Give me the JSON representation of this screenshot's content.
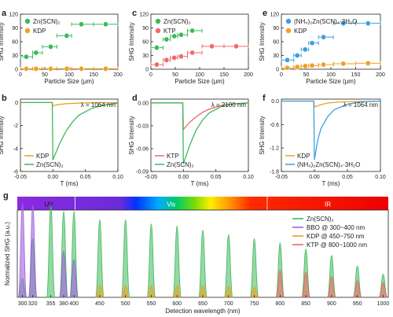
{
  "colors": {
    "zn": "#3cb95a",
    "kdp": "#f0a020",
    "ktp": "#ee6a6a",
    "nh4": "#3aa0e0",
    "bbo": "#a060e0",
    "axis": "#222222"
  },
  "chart_data": [
    {
      "id": "a",
      "type": "scatter",
      "label": "a",
      "xlabel": "Particle Size (μm)",
      "ylabel": "SHG Intensity",
      "xlim": [
        0,
        200
      ],
      "ylim": [
        0,
        120
      ],
      "xticks": [
        "0",
        "50",
        "100",
        "150",
        "200"
      ],
      "yticks": [
        "0",
        "30",
        "60",
        "90",
        "120"
      ],
      "series": [
        {
          "name": "Zn(SCN)₂",
          "color_key": "zn",
          "x": [
            12,
            32,
            62,
            95,
            125,
            175
          ],
          "y": [
            27,
            36,
            49,
            73,
            98,
            98
          ],
          "xerr": [
            [
              0,
              25
            ],
            [
              25,
              45
            ],
            [
              45,
              75
            ],
            [
              75,
              105
            ],
            [
              105,
              150
            ],
            [
              150,
              200
            ]
          ]
        },
        {
          "name": "KDP",
          "color_key": "kdp",
          "x": [
            12,
            32,
            62,
            95,
            125,
            175
          ],
          "y": [
            1,
            1,
            1,
            1,
            1,
            1
          ],
          "xerr": [
            [
              0,
              25
            ],
            [
              25,
              45
            ],
            [
              45,
              75
            ],
            [
              75,
              105
            ],
            [
              105,
              150
            ],
            [
              150,
              200
            ]
          ]
        }
      ]
    },
    {
      "id": "c",
      "type": "scatter",
      "label": "c",
      "xlabel": "Particle Size (μm)",
      "ylabel": "SHG Intensity",
      "xlim": [
        0,
        200
      ],
      "ylim": [
        0,
        120
      ],
      "xticks": [
        "0",
        "50",
        "100",
        "150",
        "200"
      ],
      "yticks": [
        "0",
        "30",
        "60",
        "90",
        "120"
      ],
      "series": [
        {
          "name": "Zn(SCN)₂",
          "color_key": "zn",
          "x": [
            12,
            32,
            48,
            62,
            85
          ],
          "y": [
            47,
            65,
            72,
            75,
            84
          ],
          "xerr": [
            [
              0,
              25
            ],
            [
              25,
              40
            ],
            [
              40,
              55
            ],
            [
              55,
              75
            ],
            [
              75,
              105
            ]
          ]
        },
        {
          "name": "KTP",
          "color_key": "ktp",
          "x": [
            12,
            32,
            48,
            62,
            85,
            125,
            175
          ],
          "y": [
            10,
            20,
            25,
            28,
            36,
            50,
            50
          ],
          "xerr": [
            [
              0,
              25
            ],
            [
              25,
              40
            ],
            [
              40,
              55
            ],
            [
              55,
              75
            ],
            [
              75,
              105
            ],
            [
              105,
              150
            ],
            [
              150,
              200
            ]
          ]
        }
      ]
    },
    {
      "id": "e",
      "type": "scatter",
      "label": "e",
      "xlabel": "Particle Size (μm)",
      "ylabel": "SHG Intensity",
      "xlim": [
        0,
        200
      ],
      "ylim": [
        0,
        120
      ],
      "xticks": [
        "0",
        "50",
        "100",
        "150",
        "200"
      ],
      "yticks": [
        "0",
        "30",
        "60",
        "90",
        "120"
      ],
      "series": [
        {
          "name": "(NH₄)₂Zn(SCN)₄·3H₂O",
          "color_key": "nh4",
          "x": [
            12,
            32,
            48,
            62,
            85,
            125,
            175
          ],
          "y": [
            20,
            30,
            43,
            57,
            70,
            100,
            100
          ],
          "xerr": [
            [
              0,
              25
            ],
            [
              25,
              40
            ],
            [
              40,
              55
            ],
            [
              55,
              75
            ],
            [
              75,
              105
            ],
            [
              105,
              150
            ],
            [
              150,
              200
            ]
          ]
        },
        {
          "name": "KDP",
          "color_key": "kdp",
          "x": [
            12,
            32,
            48,
            62,
            85,
            125,
            175
          ],
          "y": [
            3,
            5,
            7,
            8,
            10,
            12,
            13
          ],
          "xerr": [
            [
              0,
              25
            ],
            [
              25,
              40
            ],
            [
              40,
              55
            ],
            [
              55,
              75
            ],
            [
              75,
              105
            ],
            [
              105,
              150
            ],
            [
              150,
              200
            ]
          ]
        }
      ]
    },
    {
      "id": "b",
      "type": "line",
      "label": "b",
      "xlabel": "T (ms)",
      "ylabel": "SHG Intensity",
      "xlim": [
        -0.05,
        0.1
      ],
      "ylim": [
        -6,
        0.3
      ],
      "xticks": [
        "-0.05",
        "0.00",
        "0.05",
        "0.10"
      ],
      "yticks": [
        "0",
        "-2",
        "-4",
        "-6"
      ],
      "annotation": "λ = 1064 nm",
      "series": [
        {
          "name": "KDP",
          "color_key": "kdp",
          "x": [
            -0.05,
            -0.001,
            0.0,
            0.005,
            0.02,
            0.05,
            0.1
          ],
          "y": [
            0,
            0,
            -0.3,
            -0.2,
            -0.1,
            -0.03,
            0
          ]
        },
        {
          "name": "Zn(SCN)₂",
          "color_key": "zn",
          "x": [
            -0.05,
            -0.001,
            0.0,
            0.01,
            0.02,
            0.03,
            0.04,
            0.06,
            0.08,
            0.1
          ],
          "y": [
            0,
            0,
            -5.0,
            -3.6,
            -2.5,
            -1.7,
            -1.1,
            -0.5,
            -0.2,
            -0.05
          ]
        }
      ]
    },
    {
      "id": "d",
      "type": "line",
      "label": "d",
      "xlabel": "T (ms)",
      "ylabel": "SHG Intensity",
      "xlim": [
        -0.05,
        0.1
      ],
      "ylim": [
        -0.09,
        0.005
      ],
      "xticks": [
        "-0.05",
        "0.00",
        "0.05",
        "0.10"
      ],
      "yticks": [
        "0.00",
        "-0.03",
        "-0.06",
        "-0.09"
      ],
      "annotation": "λ = 2100 nm",
      "series": [
        {
          "name": "KTP",
          "color_key": "ktp",
          "x": [
            -0.05,
            -0.001,
            0.0,
            0.01,
            0.02,
            0.03,
            0.04,
            0.06,
            0.08,
            0.1
          ],
          "y": [
            0,
            0,
            -0.035,
            -0.025,
            -0.018,
            -0.012,
            -0.008,
            -0.003,
            -0.001,
            0
          ]
        },
        {
          "name": "Zn(SCN)₂",
          "color_key": "zn",
          "x": [
            -0.05,
            -0.001,
            0.0,
            0.01,
            0.02,
            0.03,
            0.04,
            0.06,
            0.08,
            0.1
          ],
          "y": [
            0,
            0,
            -0.08,
            -0.055,
            -0.035,
            -0.022,
            -0.013,
            -0.004,
            -0.001,
            0
          ]
        }
      ]
    },
    {
      "id": "f",
      "type": "line",
      "label": "f",
      "xlabel": "T (ms)",
      "ylabel": "SHG Intensity",
      "xlim": [
        -0.05,
        0.1
      ],
      "ylim": [
        -1.8,
        0.05
      ],
      "xticks": [
        "-0.05",
        "0.00",
        "0.05",
        "0.10"
      ],
      "yticks": [
        "0.0",
        "-0.6",
        "-1.2",
        "-1.8"
      ],
      "annotation": "λ = 1064 nm",
      "series": [
        {
          "name": "KDP",
          "color_key": "kdp",
          "x": [
            -0.05,
            -0.001,
            0.0,
            0.01,
            0.02,
            0.04,
            0.1
          ],
          "y": [
            0,
            0,
            -0.15,
            -0.09,
            -0.05,
            -0.02,
            0
          ]
        },
        {
          "name": "(NH₄)₂Zn(SCN)₄·3H₂O",
          "color_key": "nh4",
          "x": [
            -0.05,
            -0.001,
            0.0,
            0.005,
            0.01,
            0.02,
            0.03,
            0.05,
            0.07,
            0.1
          ],
          "y": [
            0,
            0,
            -1.5,
            -1.0,
            -0.7,
            -0.4,
            -0.22,
            -0.08,
            -0.02,
            0
          ]
        }
      ]
    },
    {
      "id": "g",
      "type": "line",
      "label": "g",
      "xlabel": "Detection wavelength (nm)",
      "ylabel": "Normalized SHG (a.u.)",
      "xlim": [
        290,
        1010
      ],
      "xticks": [
        "300",
        "320",
        "355",
        "380",
        "400",
        "450",
        "500",
        "550",
        "600",
        "650",
        "700",
        "750",
        "800",
        "850",
        "900",
        "950",
        "1000"
      ],
      "regions": [
        "UV",
        "Vis",
        "IR"
      ],
      "peaks": [
        300,
        320,
        355,
        380,
        400,
        450,
        500,
        550,
        600,
        650,
        700,
        750,
        800,
        850,
        900,
        950,
        1000
      ],
      "series": [
        {
          "name": "Zn(SCN)₂",
          "color_key": "zn",
          "values": [
            4.5,
            14.0,
            22.0,
            20.5,
            20.5,
            18.5,
            18.5,
            17.5,
            17.0,
            16.0,
            15.0,
            14.0,
            13.0,
            11.5,
            10.0,
            7.5,
            5.5
          ]
        },
        {
          "name": "BBO @ 300~400 nm",
          "color_key": "bbo",
          "values": [
            22.5,
            22.0,
            null,
            11.0,
            9.0,
            null,
            null,
            null,
            null,
            null,
            null,
            null,
            null,
            null,
            null,
            null,
            null
          ]
        },
        {
          "name": "KDP @ 450~750 nm",
          "color_key": "kdp",
          "values": [
            null,
            null,
            null,
            null,
            null,
            3.0,
            2.8,
            2.8,
            2.8,
            2.8,
            2.7,
            2.5,
            null,
            null,
            null,
            null,
            null
          ]
        },
        {
          "name": "KTP @ 800~1000 nm",
          "color_key": "ktp",
          "values": [
            null,
            null,
            null,
            null,
            null,
            null,
            null,
            null,
            null,
            null,
            null,
            null,
            6.5,
            6.0,
            5.0,
            4.0,
            3.5
          ]
        }
      ]
    }
  ]
}
